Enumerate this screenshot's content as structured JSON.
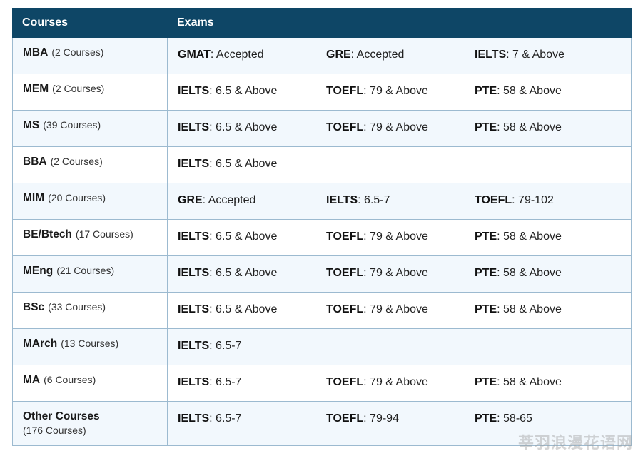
{
  "table": {
    "headers": {
      "courses": "Courses",
      "exams": "Exams"
    },
    "rows": [
      {
        "course": "MBA",
        "count": "(2 Courses)",
        "exams": [
          {
            "name": "GMAT",
            "value": ": Accepted"
          },
          {
            "name": "GRE",
            "value": ": Accepted"
          },
          {
            "name": "IELTS",
            "value": ": 7 & Above"
          }
        ]
      },
      {
        "course": "MEM",
        "count": "(2 Courses)",
        "exams": [
          {
            "name": "IELTS",
            "value": ": 6.5 & Above"
          },
          {
            "name": "TOEFL",
            "value": ": 79 & Above"
          },
          {
            "name": "PTE",
            "value": ": 58 & Above"
          }
        ]
      },
      {
        "course": "MS",
        "count": "(39 Courses)",
        "exams": [
          {
            "name": "IELTS",
            "value": ": 6.5 & Above"
          },
          {
            "name": "TOEFL",
            "value": ": 79 & Above"
          },
          {
            "name": "PTE",
            "value": ": 58 & Above"
          }
        ]
      },
      {
        "course": "BBA",
        "count": "(2 Courses)",
        "exams": [
          {
            "name": "IELTS",
            "value": ": 6.5 & Above"
          }
        ]
      },
      {
        "course": "MIM",
        "count": "(20 Courses)",
        "exams": [
          {
            "name": "GRE",
            "value": ": Accepted"
          },
          {
            "name": "IELTS",
            "value": ": 6.5-7"
          },
          {
            "name": "TOEFL",
            "value": ": 79-102"
          }
        ]
      },
      {
        "course": "BE/Btech",
        "count": "(17 Courses)",
        "exams": [
          {
            "name": "IELTS",
            "value": ": 6.5 & Above"
          },
          {
            "name": "TOEFL",
            "value": ": 79 & Above"
          },
          {
            "name": "PTE",
            "value": ": 58 & Above"
          }
        ]
      },
      {
        "course": "MEng",
        "count": "(21 Courses)",
        "exams": [
          {
            "name": "IELTS",
            "value": ": 6.5 & Above"
          },
          {
            "name": "TOEFL",
            "value": ": 79 & Above"
          },
          {
            "name": "PTE",
            "value": ": 58 & Above"
          }
        ]
      },
      {
        "course": "BSc",
        "count": "(33 Courses)",
        "exams": [
          {
            "name": "IELTS",
            "value": ": 6.5 & Above"
          },
          {
            "name": "TOEFL",
            "value": ": 79 & Above"
          },
          {
            "name": "PTE",
            "value": ": 58 & Above"
          }
        ]
      },
      {
        "course": "MArch",
        "count": "(13 Courses)",
        "exams": [
          {
            "name": "IELTS",
            "value": ": 6.5-7"
          }
        ]
      },
      {
        "course": "MA",
        "count": "(6 Courses)",
        "exams": [
          {
            "name": "IELTS",
            "value": ": 6.5-7"
          },
          {
            "name": "TOEFL",
            "value": ": 79 & Above"
          },
          {
            "name": "PTE",
            "value": ": 58 & Above"
          }
        ]
      },
      {
        "course": "Other Courses",
        "count": "(176 Courses)",
        "count_block": true,
        "exams": [
          {
            "name": "IELTS",
            "value": ": 6.5-7"
          },
          {
            "name": "TOEFL",
            "value": ": 79-94"
          },
          {
            "name": "PTE",
            "value": ": 58-65"
          }
        ]
      }
    ]
  },
  "watermark": "莘羽浪漫花语网",
  "colors": {
    "header_bg": "#0e4666",
    "alt_row_bg": "#f2f8fd",
    "border": "#9cbad0"
  }
}
